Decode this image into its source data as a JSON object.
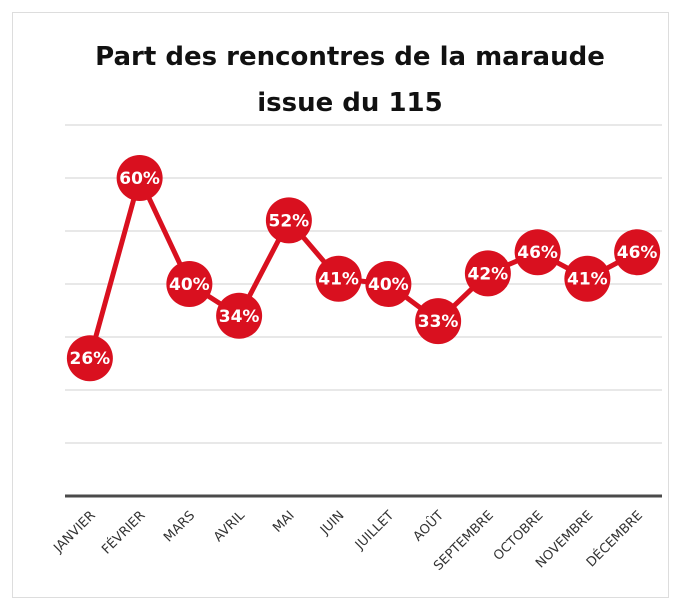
{
  "chart_data": {
    "type": "line",
    "title": "Part des rencontres de la maraude issue du 115",
    "categories": [
      "JANVIER",
      "FÉVRIER",
      "MARS",
      "AVRIL",
      "MAI",
      "JUIN",
      "JUILLET",
      "AOÛT",
      "SEPTEMBRE",
      "OCTOBRE",
      "NOVEMBRE",
      "DÉCEMBRE"
    ],
    "series": [
      {
        "name": "Part des rencontres",
        "color": "#d9101f",
        "values": [
          26,
          60,
          40,
          34,
          52,
          41,
          40,
          33,
          42,
          46,
          41,
          46
        ],
        "value_labels": [
          "26%",
          "60%",
          "40%",
          "34%",
          "52%",
          "41%",
          "40%",
          "33%",
          "42%",
          "46%",
          "41%",
          "46%"
        ]
      }
    ],
    "ylim": [
      0,
      70
    ],
    "yticks": [
      0,
      10,
      20,
      30,
      40,
      50,
      60,
      70
    ],
    "grid": true
  }
}
